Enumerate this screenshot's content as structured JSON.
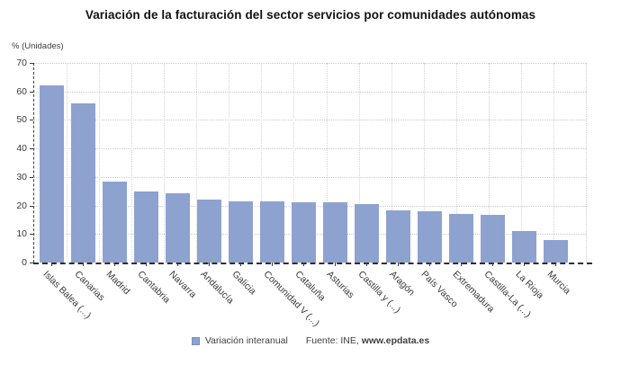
{
  "title": "Variación de la facturación del sector servicios por comunidades autónomas",
  "y_axis_unit_label": "% (Unidades)",
  "legend": {
    "series_label": "Variación interanual"
  },
  "source": {
    "prefix": "Fuente: INE, ",
    "bold": "www.epdata.es"
  },
  "colors": {
    "bar": "#8da2cf",
    "grid": "#c9c9c9",
    "axis": "#3a3a3a",
    "text": "#3a3a3a",
    "title": "#121212"
  },
  "chart_data": {
    "type": "bar",
    "title": "Variación de la facturación del sector servicios por comunidades autónomas",
    "xlabel": "",
    "ylabel": "% (Unidades)",
    "ylim": [
      0,
      70
    ],
    "ytick_interval": 10,
    "yticks": [
      0,
      10,
      20,
      30,
      40,
      50,
      60,
      70
    ],
    "grid": true,
    "legend_position": "bottom",
    "series_name": "Variación interanual",
    "categories": [
      "Islas Balea (...)",
      "Canarias",
      "Madrid",
      "Cantabria",
      "Navarra",
      "Andalucía",
      "Galicia",
      "Comunidad V (...)",
      "Cataluña",
      "Asturias",
      "Castilla y (...)",
      "Aragón",
      "País Vasco",
      "Extremadura",
      "Castilla-La (...)",
      "La Rioja",
      "Murcia"
    ],
    "values": [
      62.0,
      55.8,
      28.5,
      24.8,
      24.4,
      22.1,
      21.6,
      21.5,
      21.2,
      21.0,
      20.4,
      18.4,
      17.9,
      17.1,
      16.7,
      10.9,
      7.8
    ]
  }
}
